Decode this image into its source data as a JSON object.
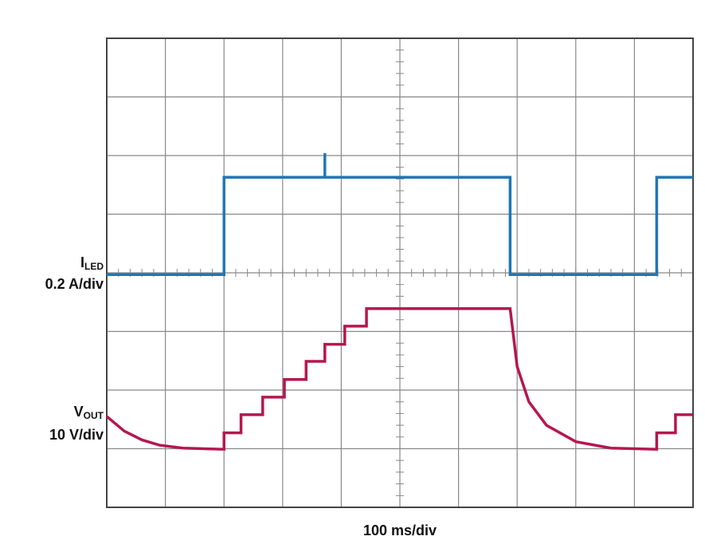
{
  "chart_data": {
    "type": "line",
    "x_label": "100 ms/div",
    "xlim": [
      0,
      10
    ],
    "ylim": [
      0,
      8
    ],
    "xticks": [
      0,
      1,
      2,
      3,
      4,
      5,
      6,
      7,
      8,
      9,
      10
    ],
    "yticks": [
      0,
      1,
      2,
      3,
      4,
      5,
      6,
      7,
      8
    ],
    "grid": true,
    "series": [
      {
        "label": "I",
        "label_sub": "LED",
        "scale": "0.2 A/div",
        "color": "#1f77b8",
        "x": [
          0,
          2.0,
          2.0,
          3.72,
          3.72,
          3.72,
          6.88,
          6.88,
          9.38,
          9.38,
          10
        ],
        "values": [
          3.97,
          3.97,
          5.63,
          5.63,
          6.04,
          5.63,
          5.63,
          3.97,
          3.97,
          5.63,
          5.63
        ]
      },
      {
        "label": "V",
        "label_sub": "OUT",
        "scale": "10 V/div",
        "color": "#b5174f",
        "x": [
          0,
          0.3,
          0.6,
          0.9,
          1.3,
          2.0,
          2.0,
          2.29,
          2.29,
          2.66,
          2.66,
          3.03,
          3.03,
          3.4,
          3.4,
          3.72,
          3.72,
          4.06,
          4.06,
          4.43,
          4.43,
          6.88,
          7.0,
          7.2,
          7.5,
          8.0,
          8.6,
          9.38,
          9.38,
          9.7,
          9.7,
          10
        ],
        "values": [
          1.55,
          1.3,
          1.15,
          1.06,
          1.01,
          0.99,
          1.27,
          1.27,
          1.58,
          1.58,
          1.88,
          1.88,
          2.18,
          2.18,
          2.49,
          2.49,
          2.78,
          2.78,
          3.09,
          3.09,
          3.39,
          3.39,
          2.4,
          1.8,
          1.4,
          1.12,
          1.01,
          0.99,
          1.27,
          1.27,
          1.58,
          1.58
        ]
      }
    ]
  }
}
